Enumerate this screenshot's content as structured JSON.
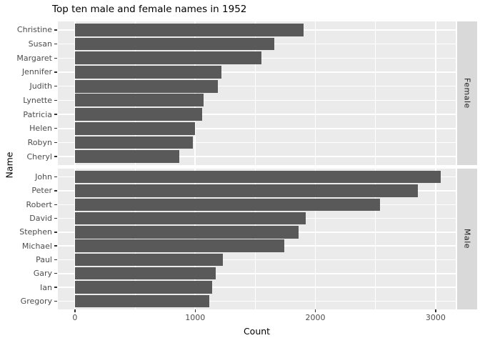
{
  "chart_data": {
    "type": "bar",
    "orientation": "horizontal",
    "title": "Top ten male and female names in 1952",
    "xlabel": "Count",
    "ylabel": "Name",
    "xlim": [
      -142,
      3167
    ],
    "x_ticks": [
      0,
      1000,
      2000,
      3000
    ],
    "x_tick_labels": [
      "0",
      "1000",
      "2000",
      "3000"
    ],
    "x_minor_ticks": [
      500,
      1500,
      2500
    ],
    "grid": true,
    "legend": null,
    "facets": [
      {
        "label": "Female",
        "categories": [
          "Christine",
          "Susan",
          "Margaret",
          "Jennifer",
          "Judith",
          "Lynette",
          "Patricia",
          "Helen",
          "Robyn",
          "Cheryl"
        ],
        "values": [
          1900,
          1660,
          1550,
          1220,
          1190,
          1070,
          1060,
          1000,
          980,
          870
        ]
      },
      {
        "label": "Male",
        "categories": [
          "John",
          "Peter",
          "Robert",
          "David",
          "Stephen",
          "Michael",
          "Paul",
          "Gary",
          "Ian",
          "Gregory"
        ],
        "values": [
          3040,
          2850,
          2540,
          1920,
          1860,
          1740,
          1230,
          1170,
          1140,
          1120
        ]
      }
    ],
    "colors": {
      "bar": "#595959",
      "panel_background": "#EBEBEB",
      "strip_background": "#D9D9D9",
      "gridline": "#FFFFFF",
      "axis_text": "#4D4D4D",
      "strip_text": "#1A1A1A",
      "tick_mark": "#333333",
      "title_text": "#000000"
    }
  }
}
